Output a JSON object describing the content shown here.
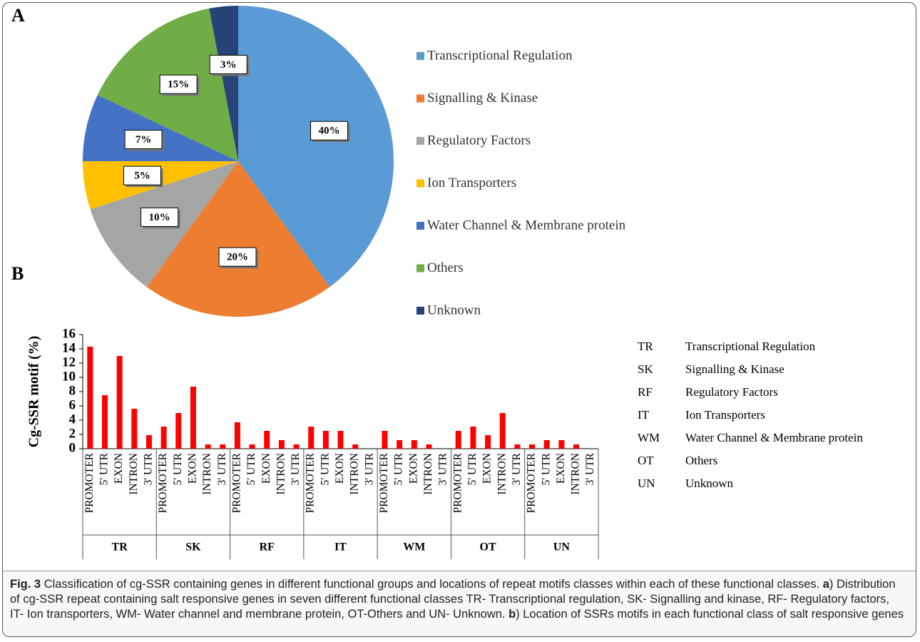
{
  "chart_data": [
    {
      "type": "pie",
      "panel": "A",
      "categories": [
        "Transcriptional Regulation",
        "Signalling & Kinase",
        "Regulatory Factors",
        "Ion Transporters",
        "Water Channel & Membrane protein",
        "Others",
        "Unknown"
      ],
      "values": [
        40,
        20,
        10,
        5,
        7,
        15,
        3
      ],
      "value_labels": [
        "40%",
        "20%",
        "10%",
        "5%",
        "7%",
        "15%",
        "3%"
      ],
      "colors": [
        "#5b9bd5",
        "#ed7d31",
        "#a5a5a5",
        "#ffc000",
        "#4472c4",
        "#70ad47",
        "#264478"
      ]
    },
    {
      "type": "bar",
      "panel": "B",
      "y_label": "Cg-SSR motif (%)",
      "color": "#ff0000",
      "ylim": [
        0,
        16
      ],
      "yticks": [
        0,
        2,
        4,
        6,
        8,
        10,
        12,
        14,
        16
      ],
      "groups": [
        {
          "name": "TR",
          "categories": [
            "PROMOTER",
            "5' UTR",
            "EXON",
            "INTRON",
            "3' UTR"
          ],
          "values": [
            14.3,
            7.5,
            13,
            5.6,
            1.9
          ]
        },
        {
          "name": "SK",
          "categories": [
            "PROMOTER",
            "5' UTR",
            "EXON",
            "INTRON",
            "3' UTR"
          ],
          "values": [
            3.1,
            5,
            8.7,
            0.6,
            0.6
          ]
        },
        {
          "name": "RF",
          "categories": [
            "PROMOTER",
            "5' UTR",
            "EXON",
            "INTRON",
            "3' UTR"
          ],
          "values": [
            3.7,
            0.6,
            2.5,
            1.2,
            0.6
          ]
        },
        {
          "name": "IT",
          "categories": [
            "PROMOTER",
            "5' UTR",
            "EXON",
            "INTRON",
            "3' UTR"
          ],
          "values": [
            3.1,
            2.5,
            2.5,
            0.6,
            0
          ]
        },
        {
          "name": "WM",
          "categories": [
            "PROMOTER",
            "5' UTR",
            "EXON",
            "INTRON",
            "3' UTR"
          ],
          "values": [
            2.5,
            1.2,
            1.2,
            0.6,
            0
          ]
        },
        {
          "name": "OT",
          "categories": [
            "PROMOTER",
            "5' UTR",
            "EXON",
            "INTRON",
            "3' UTR"
          ],
          "values": [
            2.5,
            3.1,
            1.9,
            5,
            0.6
          ]
        },
        {
          "name": "UN",
          "categories": [
            "PROMOTER",
            "5' UTR",
            "EXON",
            "INTRON",
            "3' UTR"
          ],
          "values": [
            0.6,
            1.2,
            1.2,
            0.6,
            0
          ]
        }
      ],
      "abbreviations": [
        {
          "code": "TR",
          "name": "Transcriptional Regulation"
        },
        {
          "code": "SK",
          "name": "Signalling & Kinase"
        },
        {
          "code": "RF",
          "name": "Regulatory Factors"
        },
        {
          "code": "IT",
          "name": "Ion Transporters"
        },
        {
          "code": "WM",
          "name": "Water Channel & Membrane protein"
        },
        {
          "code": "OT",
          "name": "Others"
        },
        {
          "code": "UN",
          "name": "Unknown"
        }
      ]
    }
  ],
  "caption": [
    {
      "text": "Fig. 3",
      "bold": true
    },
    {
      "text": " Classification of cg-SSR containing genes in different functional groups and locations of repeat motifs classes within each of these functional classes. ",
      "bold": false
    },
    {
      "text": "a",
      "bold": true
    },
    {
      "text": ") Distribution of cg-SSR repeat containing salt responsive genes in seven different functional classes TR- Transcriptional regulation, SK- Signalling and kinase, RF- Regulatory factors, IT- Ion transporters, WM- Water channel and membrane protein, OT-Others and UN- Unknown. ",
      "bold": false
    },
    {
      "text": "b",
      "bold": true
    },
    {
      "text": ") Location of SSRs motifs in each functional class of salt responsive genes",
      "bold": false
    }
  ]
}
